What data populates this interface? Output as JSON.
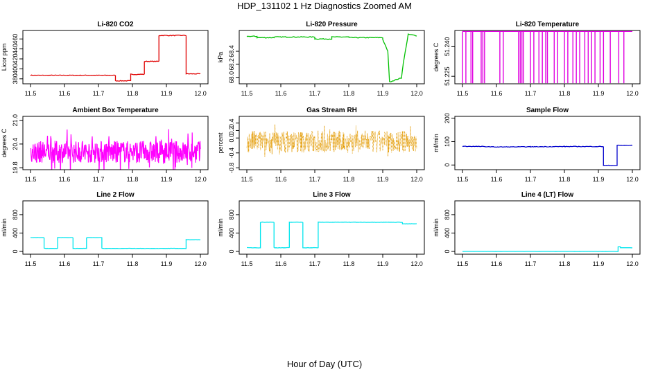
{
  "figure": {
    "title": "HDP_131102  1 Hz Diagnostics Zoomed AM",
    "xlabel": "Hour of Day (UTC)"
  },
  "chart_data": [
    {
      "type": "line",
      "title": "Li-820 CO2",
      "ylabel": "Licor ppm",
      "xlim": [
        11.5,
        12.0
      ],
      "ylim": [
        370,
        477
      ],
      "xticks": [
        "11.5",
        "11.6",
        "11.7",
        "11.8",
        "11.9",
        "12.0"
      ],
      "yticks": [
        "380",
        "400",
        "420",
        "440",
        "460"
      ],
      "color": "#e00000",
      "noise": 0.7,
      "series": [
        {
          "x": [
            11.5,
            11.75,
            11.75,
            11.795,
            11.795,
            11.835,
            11.835,
            11.878,
            11.878,
            11.958,
            11.958,
            12.0
          ],
          "y": [
            387,
            387,
            376,
            376,
            389,
            389,
            415,
            415,
            467,
            467,
            390,
            390
          ]
        }
      ]
    },
    {
      "type": "line",
      "title": "Li-820 Pressure",
      "ylabel": "kPa",
      "xlim": [
        11.5,
        12.0
      ],
      "ylim": [
        67.9,
        68.72
      ],
      "xticks": [
        "11.5",
        "11.6",
        "11.7",
        "11.8",
        "11.9",
        "12.0"
      ],
      "yticks": [
        "68.0",
        "68.2",
        "68.4"
      ],
      "color": "#00c000",
      "noise": 0.006,
      "series": [
        {
          "x": [
            11.5,
            11.53,
            11.53,
            11.58,
            11.58,
            11.7,
            11.7,
            11.75,
            11.75,
            11.8,
            11.8,
            11.9,
            11.9,
            11.915,
            11.915,
            11.92,
            11.92,
            11.955,
            11.955,
            11.96,
            11.96,
            11.975,
            11.975,
            12.0
          ],
          "y": [
            68.63,
            68.63,
            68.61,
            68.61,
            68.62,
            68.62,
            68.59,
            68.59,
            68.62,
            68.62,
            68.61,
            68.61,
            68.58,
            68.4,
            68.4,
            67.93,
            67.93,
            67.99,
            67.99,
            68.2,
            68.2,
            68.66,
            68.66,
            68.64
          ]
        }
      ]
    },
    {
      "type": "line",
      "title": "Li-820 Temperature",
      "ylabel": "degrees C",
      "xlim": [
        11.5,
        12.0
      ],
      "ylim": [
        51.2212,
        51.2482
      ],
      "xticks": [
        "11.5",
        "11.6",
        "11.7",
        "11.8",
        "11.9",
        "12.0"
      ],
      "yticks": [
        "51.225",
        "51.240"
      ],
      "color": "#e000e0",
      "noise": 0.0,
      "series": [
        {
          "x": [
            11.5,
            12.0
          ],
          "y": [
            51.2477,
            51.2477
          ]
        }
      ],
      "dips_x": [
        11.5,
        11.51,
        11.525,
        11.53,
        11.555,
        11.56,
        11.565,
        11.61,
        11.62,
        11.665,
        11.67,
        11.675,
        11.68,
        11.7,
        11.71,
        11.725,
        11.735,
        11.745,
        11.75,
        11.77,
        11.78,
        11.8,
        11.81,
        11.825,
        11.835,
        11.845,
        11.86,
        11.87,
        11.88,
        11.89,
        11.905,
        11.915,
        11.935,
        11.96,
        11.975
      ],
      "dips_y": [
        51.2215,
        51.2215,
        51.2215,
        51.2215,
        51.2215,
        51.2215,
        51.2215,
        51.2215,
        51.2215,
        51.2215,
        51.2215,
        51.2215,
        51.2215,
        51.2215,
        51.2215,
        51.2215,
        51.2215,
        51.2215,
        51.2215,
        51.2215,
        51.2215,
        51.2215,
        51.2215,
        51.2215,
        51.2215,
        51.2215,
        51.2215,
        51.2215,
        51.2215,
        51.2215,
        51.2215,
        51.2215,
        51.2215,
        51.2215,
        51.2215
      ]
    },
    {
      "type": "line",
      "title": "Ambient Box Temperature",
      "ylabel": "degrees C",
      "xlim": [
        11.5,
        12.0
      ],
      "ylim": [
        19.75,
        21.1
      ],
      "xticks": [
        "11.5",
        "11.6",
        "11.7",
        "11.8",
        "11.9",
        "12.0"
      ],
      "yticks": [
        "19.8",
        "20.4",
        "21.0"
      ],
      "color": "#ff00ff",
      "noise": 0.0,
      "band": [
        20.2,
        0.28
      ],
      "series": []
    },
    {
      "type": "scatter",
      "title": "Gas Stream RH",
      "ylabel": "percent",
      "xlim": [
        11.5,
        12.0
      ],
      "ylim": [
        -0.85,
        0.58
      ],
      "xticks": [
        "11.5",
        "11.6",
        "11.7",
        "11.8",
        "11.9",
        "12.0"
      ],
      "yticks": [
        "-0.8",
        "-0.4",
        "0.0",
        "0.2",
        "0.4"
      ],
      "color": "#e39a00",
      "noise": 0.0,
      "band": [
        -0.1,
        0.3
      ],
      "series": []
    },
    {
      "type": "line",
      "title": "Sample Flow",
      "ylabel": "ml/min",
      "xlim": [
        11.5,
        12.0
      ],
      "ylim": [
        -20,
        208
      ],
      "xticks": [
        "11.5",
        "11.6",
        "11.7",
        "11.8",
        "11.9",
        "12.0"
      ],
      "yticks": [
        "0",
        "100",
        "200"
      ],
      "color": "#0000cc",
      "noise": 1.2,
      "series": [
        {
          "x": [
            11.5,
            11.56,
            11.6,
            11.7,
            11.8,
            11.915,
            11.915,
            11.955,
            11.955,
            12.0
          ],
          "y": [
            80,
            79,
            77,
            78,
            79,
            79,
            -2,
            -2,
            84,
            84
          ]
        }
      ]
    },
    {
      "type": "line",
      "title": "Line 2 Flow",
      "ylabel": "ml/min",
      "xlim": [
        11.5,
        12.0
      ],
      "ylim": [
        -60,
        1100
      ],
      "xticks": [
        "11.5",
        "11.6",
        "11.7",
        "11.8",
        "11.9",
        "12.0"
      ],
      "yticks": [
        "0",
        "400",
        "800"
      ],
      "color": "#00e5ee",
      "noise": 3,
      "series": [
        {
          "x": [
            11.5,
            11.54,
            11.54,
            11.58,
            11.58,
            11.625,
            11.625,
            11.665,
            11.665,
            11.71,
            11.71,
            11.958,
            11.958,
            12.0
          ],
          "y": [
            300,
            300,
            65,
            65,
            300,
            300,
            65,
            65,
            300,
            300,
            65,
            65,
            255,
            255
          ]
        }
      ]
    },
    {
      "type": "line",
      "title": "Line 3 Flow",
      "ylabel": "ml/min",
      "xlim": [
        11.5,
        12.0
      ],
      "ylim": [
        -60,
        1100
      ],
      "xticks": [
        "11.5",
        "11.6",
        "11.7",
        "11.8",
        "11.9",
        "12.0"
      ],
      "yticks": [
        "0",
        "400",
        "800"
      ],
      "color": "#00e5ee",
      "noise": 4,
      "series": [
        {
          "x": [
            11.5,
            11.54,
            11.54,
            11.58,
            11.58,
            11.625,
            11.625,
            11.665,
            11.665,
            11.71,
            11.71,
            11.958,
            11.958,
            12.0
          ],
          "y": [
            80,
            80,
            635,
            635,
            80,
            80,
            635,
            635,
            80,
            80,
            635,
            635,
            600,
            600
          ]
        }
      ]
    },
    {
      "type": "line",
      "title": "Line 4 (LT) Flow",
      "ylabel": "ml/min",
      "xlim": [
        11.5,
        12.0
      ],
      "ylim": [
        -60,
        1100
      ],
      "xticks": [
        "11.5",
        "11.6",
        "11.7",
        "11.8",
        "11.9",
        "12.0"
      ],
      "yticks": [
        "0",
        "400",
        "800"
      ],
      "color": "#00e5ee",
      "noise": 1,
      "series": [
        {
          "x": [
            11.5,
            11.958,
            11.958,
            11.965,
            11.965,
            12.0
          ],
          "y": [
            0,
            0,
            100,
            100,
            80,
            80
          ]
        }
      ]
    }
  ]
}
